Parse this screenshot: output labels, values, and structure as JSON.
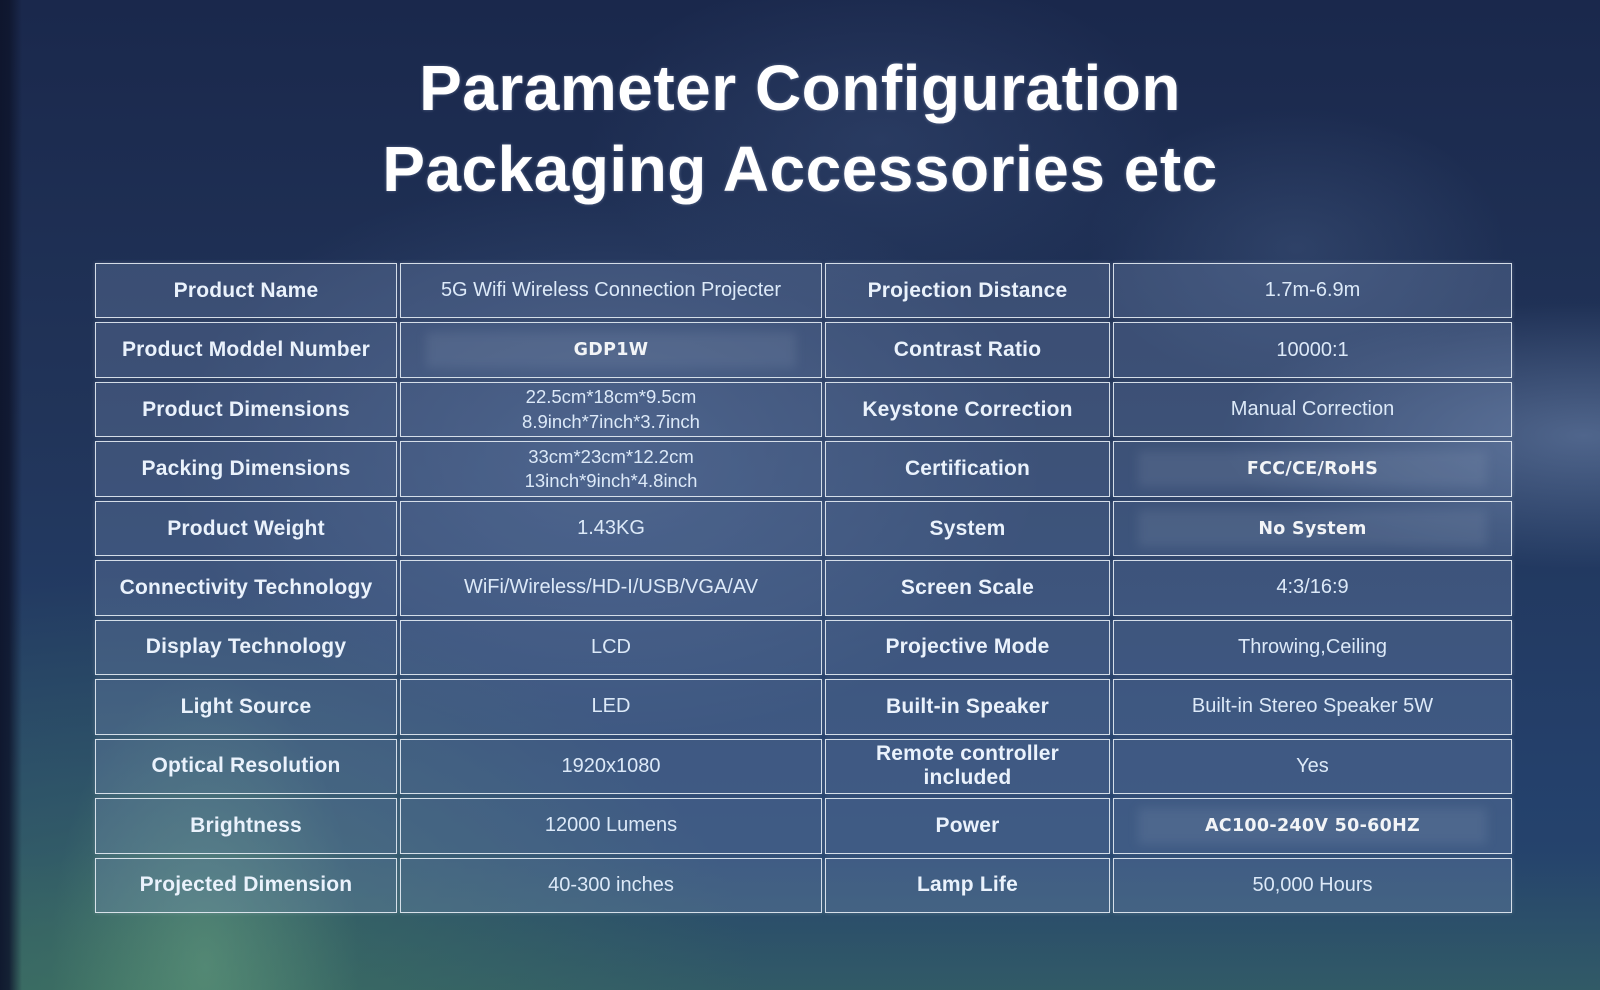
{
  "title": {
    "line1": "Parameter Configuration",
    "line2": "Packaging Accessories etc"
  },
  "table": {
    "rows": [
      {
        "l_label": "Product Name",
        "l_value": "5G Wifi Wireless Connection Projecter",
        "r_label": "Projection Distance",
        "r_value": "1.7m-6.9m"
      },
      {
        "l_label": "Product Moddel Number",
        "l_value": "GDP1W",
        "r_label": "Contrast Ratio",
        "r_value": "10000:1"
      },
      {
        "l_label": "Product Dimensions",
        "l_value": [
          "22.5cm*18cm*9.5cm",
          "8.9inch*7inch*3.7inch"
        ],
        "r_label": "Keystone Correction",
        "r_value": "Manual Correction"
      },
      {
        "l_label": "Packing Dimensions",
        "l_value": [
          "33cm*23cm*12.2cm",
          "13inch*9inch*4.8inch"
        ],
        "r_label": "Certification",
        "r_value": "FCC/CE/RoHS"
      },
      {
        "l_label": "Product Weight",
        "l_value": "1.43KG",
        "r_label": "System",
        "r_value": "No System"
      },
      {
        "l_label": "Connectivity Technology",
        "l_value": "WiFi/Wireless/HD-I/USB/VGA/AV",
        "r_label": "Screen Scale",
        "r_value": "4:3/16:9"
      },
      {
        "l_label": "Display Technology",
        "l_value": "LCD",
        "r_label": "Projective Mode",
        "r_value": "Throwing,Ceiling"
      },
      {
        "l_label": "Light Source",
        "l_value": "LED",
        "r_label": "Built-in Speaker",
        "r_value": "Built-in Stereo Speaker 5W"
      },
      {
        "l_label": "Optical Resolution",
        "l_value": "1920x1080",
        "r_label": "Remote controller included",
        "r_value": "Yes"
      },
      {
        "l_label": "Brightness",
        "l_value": "12000 Lumens",
        "r_label": "Power",
        "r_value": "AC100-240V 50-60HZ"
      },
      {
        "l_label": "Projected Dimension",
        "l_value": "40-300 inches",
        "r_label": "Lamp Life",
        "r_value": "50,000 Hours"
      }
    ]
  },
  "colors": {
    "background_navy": "#213459",
    "bottom_green": "#3f6b58",
    "table_border": "#e9f0f7",
    "cell_background": "#3d5377",
    "label_text": "#eaf2fc",
    "value_text": "#dce9f8",
    "strong_value_text": "#ffffff",
    "title_text": "#ffffff"
  }
}
